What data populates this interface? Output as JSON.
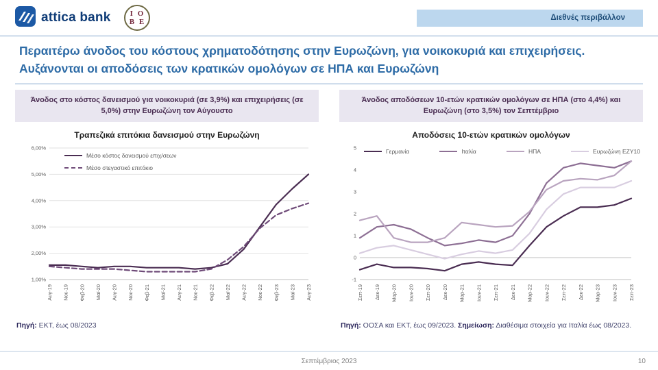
{
  "page": {
    "badge": "Διεθνές περιβάλλον",
    "title": "Περαιτέρω άνοδος του κόστους χρηματοδότησης στην Ευρωζώνη, για νοικοκυριά και επιχειρήσεις. Αυξάνονται οι αποδόσεις των κρατικών ομολόγων σε ΗΠΑ και Ευρωζώνη",
    "footer_date": "Σεπτέμβριος 2023",
    "page_number": "10",
    "brand": {
      "attica": "attica bank",
      "iobe_top": "I O",
      "iobe_bottom": "B E"
    }
  },
  "left": {
    "callout": "Άνοδος στο κόστος δανεισμού για νοικοκυριά (σε 3,9%) και επιχειρήσεις (σε 5,0%) στην Ευρωζώνη τον Αύγουστο",
    "source_label": "Πηγή:",
    "source_text": " ΕΚΤ, έως 08/2023"
  },
  "right": {
    "callout": "Άνοδος αποδόσεων 10-ετών κρατικών ομολόγων σε ΗΠΑ (στο 4,4%) και Ευρωζώνη (στο 3,5%) τον Σεπτέμβριο",
    "source_label": "Πηγή:",
    "source_text": " ΟΟΣΑ και ΕΚΤ, έως 09/2023. ",
    "note_label": "Σημείωση:",
    "note_text": " Διαθέσιμα στοιχεία για Ιταλία έως 08/2023."
  },
  "colors": {
    "accent_blue": "#2d6ba6",
    "badge_bg": "#bcd7ee",
    "callout_bg": "#e9e6f0",
    "plum_dark": "#4a2d52"
  },
  "chart_data": [
    {
      "type": "line",
      "title": "Τραπεζικά επιτόκια δανεισμού στην Ευρωζώνη",
      "categories": [
        "Αυγ-19",
        "Νοε-19",
        "Φεβ-20",
        "Μαϊ-20",
        "Αυγ-20",
        "Νοε-20",
        "Φεβ-21",
        "Μαϊ-21",
        "Αυγ-21",
        "Νοε-21",
        "Φεβ-22",
        "Μαϊ-22",
        "Αυγ-22",
        "Νοε-22",
        "Φεβ-23",
        "Μαϊ-23",
        "Αυγ-23"
      ],
      "series": [
        {
          "name": "Μέσο κόστος δανεισμού επιχ/σεων",
          "style": "solid",
          "color": "#4a2d52",
          "values": [
            1.55,
            1.55,
            1.5,
            1.45,
            1.5,
            1.5,
            1.45,
            1.45,
            1.45,
            1.4,
            1.45,
            1.6,
            2.15,
            3.0,
            3.85,
            4.45,
            5.0
          ]
        },
        {
          "name": "Μέσο στεγαστικό επιτόκιο",
          "style": "dashed",
          "color": "#6e4a78",
          "values": [
            1.5,
            1.45,
            1.4,
            1.4,
            1.4,
            1.35,
            1.3,
            1.3,
            1.3,
            1.3,
            1.4,
            1.75,
            2.25,
            2.95,
            3.45,
            3.7,
            3.9
          ]
        }
      ],
      "ylim": [
        1,
        6
      ],
      "ytick_values": [
        6,
        5,
        4,
        3,
        2,
        1
      ],
      "ytick_labels": [
        "6,00%",
        "5,00%",
        "4,00%",
        "3,00%",
        "2,00%",
        "1,00%"
      ],
      "grid": true,
      "bottom_axis": true,
      "zero_line": false,
      "legend_position": "top-left-stacked"
    },
    {
      "type": "line",
      "title": "Αποδόσεις 10-ετών κρατικών ομολόγων",
      "categories": [
        "Σεπ-19",
        "Δεκ-19",
        "Μαρ-20",
        "Ιουν-20",
        "Σεπ-20",
        "Δεκ-20",
        "Μαρ-21",
        "Ιουν-21",
        "Σεπ-21",
        "Δεκ-21",
        "Μαρ-22",
        "Ιουν-22",
        "Σεπ-22",
        "Δεκ-22",
        "Μαρ-23",
        "Ιουν-23",
        "Σεπ-23"
      ],
      "series": [
        {
          "name": "Γερμανία",
          "style": "solid",
          "color": "#4a2d52",
          "values": [
            -0.55,
            -0.3,
            -0.45,
            -0.45,
            -0.5,
            -0.6,
            -0.3,
            -0.2,
            -0.3,
            -0.35,
            0.55,
            1.4,
            1.9,
            2.3,
            2.3,
            2.4,
            2.7
          ]
        },
        {
          "name": "Ιταλία",
          "style": "solid",
          "color": "#8d6f94",
          "values": [
            0.9,
            1.4,
            1.5,
            1.3,
            0.9,
            0.55,
            0.65,
            0.8,
            0.7,
            1.0,
            2.0,
            3.4,
            4.1,
            4.3,
            4.2,
            4.1,
            4.4
          ]
        },
        {
          "name": "ΗΠΑ",
          "style": "solid",
          "color": "#b9a4bf",
          "values": [
            1.7,
            1.9,
            0.9,
            0.7,
            0.7,
            0.9,
            1.6,
            1.5,
            1.4,
            1.45,
            2.1,
            3.1,
            3.5,
            3.6,
            3.55,
            3.75,
            4.4
          ]
        },
        {
          "name": "Ευρωζώνη ΕΖΥ10",
          "style": "solid",
          "color": "#d8cde0",
          "values": [
            0.2,
            0.45,
            0.55,
            0.35,
            0.15,
            -0.05,
            0.15,
            0.3,
            0.2,
            0.35,
            1.1,
            2.2,
            2.9,
            3.2,
            3.2,
            3.2,
            3.5
          ]
        }
      ],
      "ylim": [
        -1,
        5
      ],
      "ytick_values": [
        5,
        4,
        3,
        2,
        1,
        0,
        -1
      ],
      "ytick_labels": [
        "5",
        "4",
        "3",
        "2",
        "1",
        "0",
        "-1"
      ],
      "grid": false,
      "bottom_axis": true,
      "zero_line": true,
      "legend_position": "top-row"
    }
  ]
}
